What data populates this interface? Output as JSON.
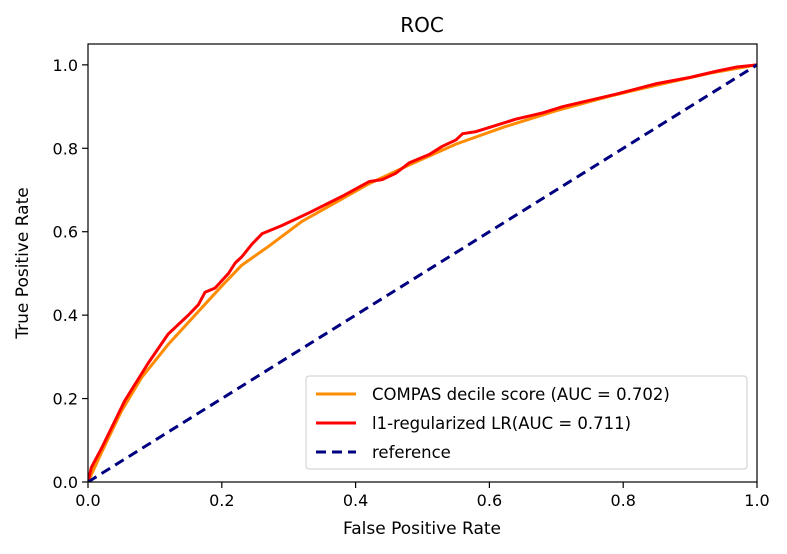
{
  "chart_data": {
    "type": "line",
    "title": "ROC",
    "xlabel": "False Positive Rate",
    "ylabel": "True Positive Rate",
    "xlim": [
      0.0,
      1.0
    ],
    "ylim": [
      0.0,
      1.05
    ],
    "xticks": [
      "0.0",
      "0.2",
      "0.4",
      "0.6",
      "0.8",
      "1.0"
    ],
    "yticks": [
      "0.0",
      "0.2",
      "0.4",
      "0.6",
      "0.8",
      "1.0"
    ],
    "grid": false,
    "legend_position": "lower-right",
    "series": [
      {
        "name": " COMPAS decile score (AUC = 0.702)",
        "color": "#ff8c00",
        "style": "solid",
        "x": [
          0.0,
          0.02,
          0.05,
          0.08,
          0.12,
          0.16,
          0.2,
          0.23,
          0.27,
          0.32,
          0.37,
          0.42,
          0.48,
          0.55,
          0.62,
          0.7,
          0.78,
          0.86,
          0.93,
          1.0
        ],
        "y": [
          0.0,
          0.07,
          0.17,
          0.25,
          0.33,
          0.4,
          0.47,
          0.52,
          0.565,
          0.625,
          0.67,
          0.715,
          0.76,
          0.81,
          0.85,
          0.89,
          0.925,
          0.955,
          0.98,
          1.0
        ]
      },
      {
        "name": " l1-regularized LR(AUC = 0.711)",
        "color": "#ff0000",
        "style": "solid",
        "x": [
          0.0,
          0.005,
          0.02,
          0.055,
          0.09,
          0.12,
          0.15,
          0.165,
          0.175,
          0.19,
          0.21,
          0.22,
          0.23,
          0.245,
          0.26,
          0.29,
          0.33,
          0.38,
          0.42,
          0.44,
          0.46,
          0.48,
          0.51,
          0.53,
          0.55,
          0.56,
          0.58,
          0.6,
          0.64,
          0.68,
          0.71,
          0.75,
          0.79,
          0.85,
          0.9,
          0.94,
          0.97,
          1.0
        ],
        "y": [
          0.0,
          0.035,
          0.08,
          0.195,
          0.285,
          0.355,
          0.4,
          0.425,
          0.455,
          0.465,
          0.5,
          0.525,
          0.54,
          0.57,
          0.595,
          0.615,
          0.645,
          0.685,
          0.72,
          0.725,
          0.74,
          0.765,
          0.785,
          0.805,
          0.82,
          0.835,
          0.84,
          0.85,
          0.87,
          0.885,
          0.9,
          0.915,
          0.93,
          0.955,
          0.97,
          0.985,
          0.995,
          1.0
        ]
      },
      {
        "name": "reference",
        "color": "#000080",
        "style": "dashed",
        "x": [
          0.0,
          1.0
        ],
        "y": [
          0.0,
          1.0
        ]
      }
    ]
  }
}
